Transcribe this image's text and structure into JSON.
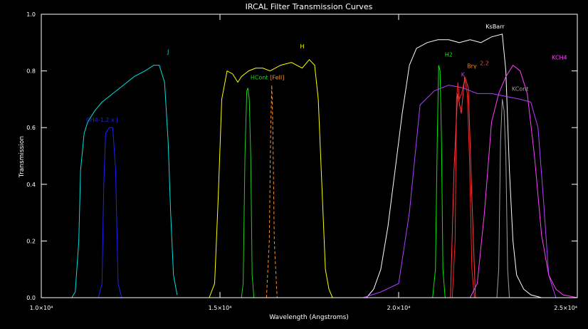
{
  "chart_data": {
    "type": "line",
    "title": "IRCAL Filter Transmission Curves",
    "xlabel": "Wavelength (Angstroms)",
    "ylabel": "Transmission",
    "xlim": [
      10000,
      25000
    ],
    "ylim": [
      0,
      1.0
    ],
    "grid": false,
    "x_ticks": [
      {
        "value": 10000,
        "label": "1.0×10⁴"
      },
      {
        "value": 15000,
        "label": "1.5×10⁴"
      },
      {
        "value": 20000,
        "label": "2.0×10⁴"
      },
      {
        "value": 25000,
        "label": "2.5×10⁴"
      }
    ],
    "y_ticks": [
      {
        "value": 0.0,
        "label": "0.0"
      },
      {
        "value": 0.2,
        "label": "0.2"
      },
      {
        "value": 0.4,
        "label": "0.4"
      },
      {
        "value": 0.6,
        "label": "0.6"
      },
      {
        "value": 0.8,
        "label": "0.8"
      },
      {
        "value": 1.0,
        "label": "1.0"
      }
    ],
    "series": [
      {
        "name": "J",
        "color": "#00e0e0",
        "dashed": false,
        "x": [
          10850,
          10950,
          11050,
          11100,
          11200,
          11300,
          11500,
          11700,
          12000,
          12300,
          12600,
          12900,
          13150,
          13300,
          13450,
          13550,
          13620,
          13700,
          13800
        ],
        "y": [
          0.0,
          0.02,
          0.2,
          0.45,
          0.58,
          0.62,
          0.66,
          0.69,
          0.72,
          0.75,
          0.78,
          0.8,
          0.82,
          0.82,
          0.76,
          0.55,
          0.3,
          0.08,
          0.01
        ]
      },
      {
        "name": "CH4-1.2 x J",
        "color": "#2020ff",
        "dashed": false,
        "x": [
          11600,
          11700,
          11750,
          11800,
          11900,
          12000,
          12080,
          12150,
          12250
        ],
        "y": [
          0.0,
          0.05,
          0.4,
          0.58,
          0.6,
          0.6,
          0.45,
          0.05,
          0.0
        ]
      },
      {
        "name": "H",
        "color": "#ffff00",
        "dashed": false,
        "x": [
          14700,
          14850,
          14950,
          15050,
          15200,
          15350,
          15500,
          15600,
          15800,
          16000,
          16200,
          16400,
          16700,
          17000,
          17300,
          17500,
          17650,
          17750,
          17850,
          17950,
          18050,
          18150
        ],
        "y": [
          0.0,
          0.05,
          0.35,
          0.7,
          0.8,
          0.79,
          0.76,
          0.78,
          0.8,
          0.81,
          0.81,
          0.8,
          0.82,
          0.83,
          0.81,
          0.84,
          0.82,
          0.7,
          0.4,
          0.1,
          0.03,
          0.0
        ]
      },
      {
        "name": "HCont",
        "color": "#22cc22",
        "dashed": false,
        "x": [
          15600,
          15650,
          15700,
          15750,
          15780,
          15820,
          15860,
          15900,
          15950
        ],
        "y": [
          0.0,
          0.05,
          0.5,
          0.73,
          0.74,
          0.7,
          0.5,
          0.08,
          0.0
        ]
      },
      {
        "name": "[FeII]",
        "color": "#ff9020",
        "dashed": true,
        "x": [
          16300,
          16380,
          16420,
          16450,
          16480,
          16520,
          16600
        ],
        "y": [
          0.0,
          0.2,
          0.6,
          0.75,
          0.6,
          0.2,
          0.0
        ]
      },
      {
        "name": "KsBarr",
        "color": "#ffffff",
        "dashed": false,
        "x": [
          19100,
          19300,
          19500,
          19700,
          19900,
          20100,
          20300,
          20500,
          20800,
          21100,
          21400,
          21700,
          22000,
          22300,
          22600,
          22900,
          23000,
          23100,
          23200,
          23300,
          23500,
          23700,
          24000
        ],
        "y": [
          0.0,
          0.03,
          0.1,
          0.25,
          0.45,
          0.65,
          0.82,
          0.88,
          0.9,
          0.91,
          0.91,
          0.9,
          0.91,
          0.9,
          0.92,
          0.93,
          0.8,
          0.45,
          0.2,
          0.08,
          0.03,
          0.01,
          0.0
        ]
      },
      {
        "name": "H2",
        "color": "#00ee00",
        "dashed": false,
        "x": [
          20950,
          21030,
          21080,
          21120,
          21160,
          21200,
          21240,
          21300
        ],
        "y": [
          0.0,
          0.1,
          0.55,
          0.82,
          0.8,
          0.55,
          0.1,
          0.0
        ]
      },
      {
        "name": "K",
        "color": "#b040ff",
        "dashed": false,
        "x": [
          19000,
          19500,
          20000,
          20300,
          20600,
          21000,
          21400,
          21800,
          22200,
          22600,
          23000,
          23400,
          23700,
          23900,
          24050,
          24200,
          24400
        ],
        "y": [
          0.0,
          0.02,
          0.05,
          0.3,
          0.68,
          0.73,
          0.75,
          0.74,
          0.72,
          0.72,
          0.71,
          0.7,
          0.69,
          0.6,
          0.35,
          0.08,
          0.0
        ]
      },
      {
        "name": "Brγ",
        "color": "#ff2020",
        "dashed": false,
        "x": [
          21500,
          21580,
          21620,
          21660,
          21700,
          21760,
          21850,
          21920,
          21980,
          22050,
          22120
        ],
        "y": [
          0.0,
          0.2,
          0.7,
          0.76,
          0.7,
          0.72,
          0.77,
          0.72,
          0.5,
          0.1,
          0.0
        ]
      },
      {
        "name": "2.2",
        "color": "#ff4040",
        "dashed": false,
        "x": [
          21450,
          21550,
          21650,
          21750,
          21850,
          21950,
          22050,
          22150
        ],
        "y": [
          0.0,
          0.45,
          0.72,
          0.65,
          0.78,
          0.74,
          0.35,
          0.0
        ]
      },
      {
        "name": "KCH4",
        "color": "#ff40ff",
        "dashed": false,
        "x": [
          22000,
          22200,
          22400,
          22600,
          22800,
          23000,
          23200,
          23400,
          23600,
          23800,
          24000,
          24200,
          24400,
          24600,
          24800,
          25000
        ],
        "y": [
          0.0,
          0.05,
          0.3,
          0.62,
          0.72,
          0.78,
          0.82,
          0.8,
          0.72,
          0.5,
          0.22,
          0.08,
          0.03,
          0.01,
          0.005,
          0.0
        ]
      },
      {
        "name": "KCont",
        "color": "#a0a0a0",
        "dashed": false,
        "x": [
          22750,
          22800,
          22850,
          22900,
          22950,
          23000,
          23050,
          23100
        ],
        "y": [
          0.0,
          0.1,
          0.55,
          0.7,
          0.66,
          0.5,
          0.1,
          0.0
        ]
      }
    ],
    "labels": [
      {
        "text": "J",
        "color": "#00e0e0",
        "x": 13550,
        "y": 0.86
      },
      {
        "text": "CH4-1.2 x J",
        "color": "#2020ff",
        "x": 11700,
        "y": 0.62
      },
      {
        "text": "H",
        "color": "#ffff00",
        "x": 17300,
        "y": 0.88
      },
      {
        "text": "HCont",
        "color": "#22cc22",
        "x": 16100,
        "y": 0.77
      },
      {
        "text": "[FeII]",
        "color": "#ff9020",
        "x": 16600,
        "y": 0.77
      },
      {
        "text": "KsBarr",
        "color": "#ffffff",
        "x": 22700,
        "y": 0.95
      },
      {
        "text": "H2",
        "color": "#00ee00",
        "x": 21400,
        "y": 0.85
      },
      {
        "text": "K",
        "color": "#b040ff",
        "x": 21800,
        "y": 0.78
      },
      {
        "text": "Brγ",
        "color": "#ff8000",
        "x": 22050,
        "y": 0.81
      },
      {
        "text": "2.2",
        "color": "#ff4040",
        "x": 22400,
        "y": 0.82
      },
      {
        "text": "KCH4",
        "color": "#ff40ff",
        "x": 24500,
        "y": 0.84
      },
      {
        "text": "KCont",
        "color": "#a0a0a0",
        "x": 23400,
        "y": 0.73
      }
    ]
  }
}
